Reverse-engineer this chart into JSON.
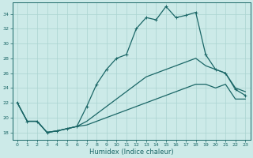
{
  "xlabel": "Humidex (Indice chaleur)",
  "xlim": [
    -0.5,
    23.5
  ],
  "ylim": [
    17.0,
    35.5
  ],
  "yticks": [
    18,
    20,
    22,
    24,
    26,
    28,
    30,
    32,
    34
  ],
  "xticks": [
    0,
    1,
    2,
    3,
    4,
    5,
    6,
    7,
    8,
    9,
    10,
    11,
    12,
    13,
    14,
    15,
    16,
    17,
    18,
    19,
    20,
    21,
    22,
    23
  ],
  "background_color": "#cceae8",
  "grid_color": "#aad4d0",
  "line_color": "#1a6666",
  "line1_x": [
    0,
    1,
    2,
    3,
    4,
    5,
    6,
    7,
    8,
    9,
    10,
    11,
    12,
    13,
    14,
    15,
    16,
    17,
    18,
    19,
    20,
    21,
    22,
    23
  ],
  "line1_y": [
    22,
    19.5,
    19.5,
    18.0,
    18.2,
    18.5,
    18.8,
    21.5,
    24.5,
    26.5,
    28.0,
    28.5,
    32,
    33.5,
    33.2,
    35.0,
    33.5,
    33.8,
    34.2,
    28.5,
    26.5,
    26.0,
    23.8,
    23.0
  ],
  "line2_x": [
    0,
    1,
    2,
    3,
    4,
    5,
    6,
    7,
    8,
    9,
    10,
    11,
    12,
    13,
    14,
    15,
    16,
    17,
    18,
    19,
    20,
    21,
    22,
    23
  ],
  "line2_y": [
    22,
    19.5,
    19.5,
    18.0,
    18.2,
    18.5,
    18.8,
    19.5,
    20.5,
    21.5,
    22.5,
    23.5,
    24.5,
    25.5,
    26.0,
    26.5,
    27.0,
    27.5,
    28.0,
    27.0,
    26.5,
    26.0,
    24.0,
    23.5
  ],
  "line3_x": [
    0,
    1,
    2,
    3,
    4,
    5,
    6,
    7,
    8,
    9,
    10,
    11,
    12,
    13,
    14,
    15,
    16,
    17,
    18,
    19,
    20,
    21,
    22,
    23
  ],
  "line3_y": [
    22,
    19.5,
    19.5,
    18.0,
    18.2,
    18.5,
    18.8,
    19.0,
    19.5,
    20.0,
    20.5,
    21.0,
    21.5,
    22.0,
    22.5,
    23.0,
    23.5,
    24.0,
    24.5,
    24.5,
    24.0,
    24.5,
    22.5,
    22.5
  ],
  "linewidth": 0.9,
  "markersize": 3.0
}
